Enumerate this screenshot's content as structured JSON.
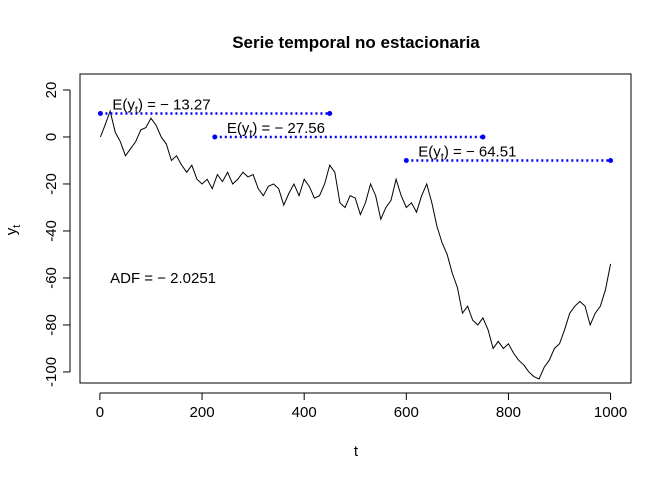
{
  "chart_data": {
    "type": "line",
    "title": "Serie temporal no estacionaria",
    "x_label": "t",
    "y_label": {
      "base": "y",
      "sub": "t"
    },
    "x": [
      1,
      10,
      20,
      30,
      40,
      50,
      60,
      70,
      80,
      90,
      100,
      110,
      120,
      130,
      140,
      150,
      160,
      170,
      180,
      190,
      200,
      210,
      220,
      230,
      240,
      250,
      260,
      270,
      280,
      290,
      300,
      310,
      320,
      330,
      340,
      350,
      360,
      370,
      380,
      390,
      400,
      410,
      420,
      430,
      440,
      450,
      460,
      470,
      480,
      490,
      500,
      510,
      520,
      530,
      540,
      550,
      560,
      570,
      580,
      590,
      600,
      610,
      620,
      630,
      640,
      650,
      660,
      670,
      680,
      690,
      700,
      710,
      720,
      730,
      740,
      750,
      760,
      770,
      780,
      790,
      800,
      810,
      820,
      830,
      840,
      850,
      860,
      870,
      880,
      890,
      900,
      910,
      920,
      930,
      940,
      950,
      960,
      970,
      980,
      990,
      1000
    ],
    "series": [
      {
        "color": "#000000",
        "values": [
          0,
          5,
          11,
          2,
          -2,
          -8,
          -5,
          -2,
          3,
          4,
          8,
          5,
          0,
          -3,
          -10,
          -8,
          -12,
          -15,
          -12,
          -18,
          -20,
          -18,
          -22,
          -16,
          -19,
          -15,
          -20,
          -18,
          -15,
          -17,
          -16,
          -22,
          -25,
          -21,
          -20,
          -22,
          -29,
          -24,
          -20,
          -25,
          -18,
          -21,
          -26,
          -25,
          -20,
          -12,
          -15,
          -28,
          -30,
          -25,
          -26,
          -33,
          -28,
          -20,
          -25,
          -35,
          -30,
          -27,
          -18,
          -25,
          -30,
          -28,
          -32,
          -25,
          -20,
          -28,
          -38,
          -45,
          -50,
          -58,
          -64,
          -75,
          -72,
          -78,
          -80,
          -77,
          -82,
          -90,
          -87,
          -90,
          -88,
          -92,
          -95,
          -97,
          -100,
          -102,
          -103,
          -98,
          -95,
          -90,
          -88,
          -82,
          -75,
          -72,
          -70,
          -72,
          -80,
          -75,
          -72,
          -65,
          -54
        ]
      }
    ],
    "xlim": [
      -39,
      1040
    ],
    "ylim": [
      -104.7,
      26.8
    ],
    "xticks": [
      0,
      200,
      400,
      600,
      800,
      1000
    ],
    "yticks": [
      -100,
      -80,
      -60,
      -40,
      -20,
      0,
      20
    ],
    "segments": [
      {
        "x0": 1,
        "x1": 450,
        "y": 10,
        "color": "#0000ff",
        "label": {
          "pre": "E(y",
          "sub": "t",
          "post": ") = − 13.27"
        }
      },
      {
        "x0": 225,
        "x1": 750,
        "y": 0,
        "color": "#0000ff",
        "label": {
          "pre": "E(y",
          "sub": "t",
          "post": ") = − 27.56"
        }
      },
      {
        "x0": 600,
        "x1": 1000,
        "y": -10,
        "color": "#0000ff",
        "label": {
          "pre": "E(y",
          "sub": "t",
          "post": ") = − 64.51"
        }
      }
    ],
    "annotation": {
      "text": "ADF = − 2.0251",
      "x": 20,
      "y": -60
    }
  }
}
